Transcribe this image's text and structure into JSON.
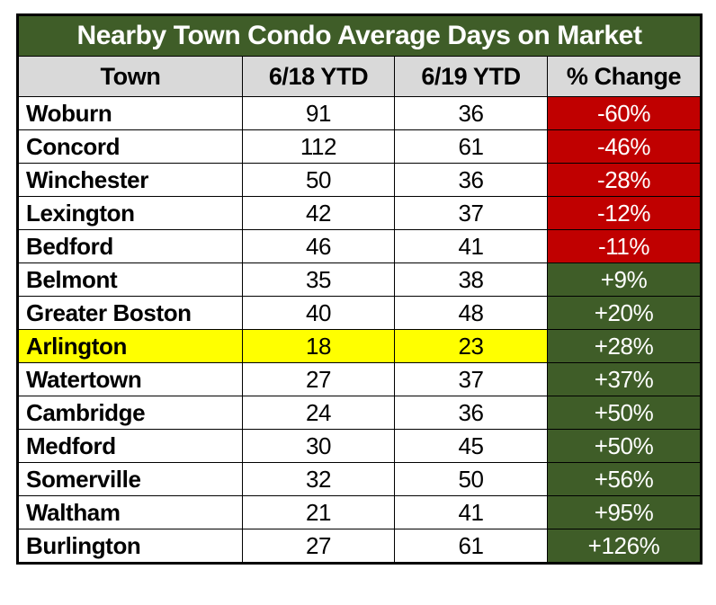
{
  "title": "Nearby Town Condo Average Days on Market",
  "header": {
    "town": "Town",
    "ytd18": "6/18 YTD",
    "ytd19": "6/19 YTD",
    "change": "% Change"
  },
  "colors": {
    "title_background_green": "#3F5D28",
    "positive_cell_green": "#3F5D28",
    "negative_cell_red": "#C00000",
    "header_gray": "#D9D9D9",
    "highlight_yellow": "#FFFF00",
    "title_text": "#FFFFFF",
    "body_text": "#000000"
  },
  "chart_data": {
    "type": "table",
    "title": "Nearby Town Condo Average Days on Market",
    "columns": [
      "Town",
      "6/18 YTD",
      "6/19 YTD",
      "% Change"
    ],
    "rows": [
      {
        "town": "Woburn",
        "ytd_6_18": 91,
        "ytd_6_19": 36,
        "pct_change": "-60%",
        "direction": "negative",
        "highlight": false
      },
      {
        "town": "Concord",
        "ytd_6_18": 112,
        "ytd_6_19": 61,
        "pct_change": "-46%",
        "direction": "negative",
        "highlight": false
      },
      {
        "town": "Winchester",
        "ytd_6_18": 50,
        "ytd_6_19": 36,
        "pct_change": "-28%",
        "direction": "negative",
        "highlight": false
      },
      {
        "town": "Lexington",
        "ytd_6_18": 42,
        "ytd_6_19": 37,
        "pct_change": "-12%",
        "direction": "negative",
        "highlight": false
      },
      {
        "town": "Bedford",
        "ytd_6_18": 46,
        "ytd_6_19": 41,
        "pct_change": "-11%",
        "direction": "negative",
        "highlight": false
      },
      {
        "town": "Belmont",
        "ytd_6_18": 35,
        "ytd_6_19": 38,
        "pct_change": "+9%",
        "direction": "positive",
        "highlight": false
      },
      {
        "town": "Greater Boston",
        "ytd_6_18": 40,
        "ytd_6_19": 48,
        "pct_change": "+20%",
        "direction": "positive",
        "highlight": false
      },
      {
        "town": "Arlington",
        "ytd_6_18": 18,
        "ytd_6_19": 23,
        "pct_change": "+28%",
        "direction": "positive",
        "highlight": true
      },
      {
        "town": "Watertown",
        "ytd_6_18": 27,
        "ytd_6_19": 37,
        "pct_change": "+37%",
        "direction": "positive",
        "highlight": false
      },
      {
        "town": "Cambridge",
        "ytd_6_18": 24,
        "ytd_6_19": 36,
        "pct_change": "+50%",
        "direction": "positive",
        "highlight": false
      },
      {
        "town": "Medford",
        "ytd_6_18": 30,
        "ytd_6_19": 45,
        "pct_change": "+50%",
        "direction": "positive",
        "highlight": false
      },
      {
        "town": "Somerville",
        "ytd_6_18": 32,
        "ytd_6_19": 50,
        "pct_change": "+56%",
        "direction": "positive",
        "highlight": false
      },
      {
        "town": "Waltham",
        "ytd_6_18": 21,
        "ytd_6_19": 41,
        "pct_change": "+95%",
        "direction": "positive",
        "highlight": false
      },
      {
        "town": "Burlington",
        "ytd_6_18": 27,
        "ytd_6_19": 61,
        "pct_change": "+126%",
        "direction": "positive",
        "highlight": false
      }
    ]
  }
}
